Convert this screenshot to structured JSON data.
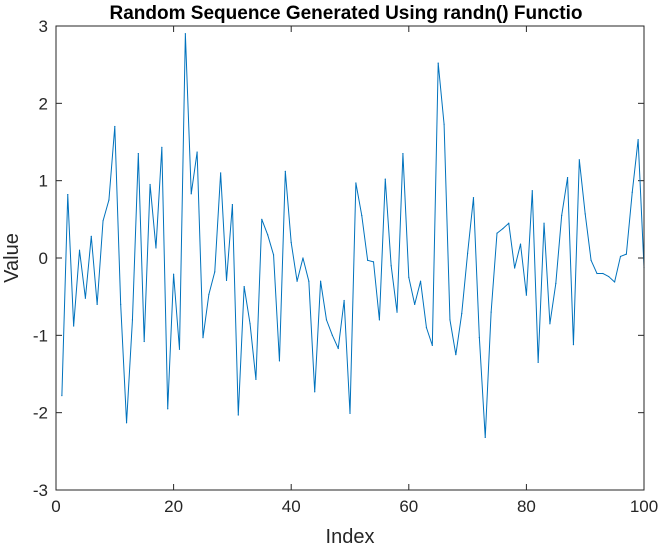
{
  "chart_data": {
    "type": "line",
    "title": "Random Sequence Generated Using randn() Functio",
    "xlabel": "Index",
    "ylabel": "Value",
    "xlim": [
      0,
      100
    ],
    "ylim": [
      -3,
      3
    ],
    "xticks": [
      0,
      20,
      40,
      60,
      80,
      100
    ],
    "yticks": [
      -3,
      -2,
      -1,
      0,
      1,
      2,
      3
    ],
    "grid": false,
    "line_color": "#0072BD",
    "series": [
      {
        "x": [
          1,
          2,
          3,
          4,
          5,
          6,
          7,
          8,
          9,
          10,
          11,
          12,
          13,
          14,
          15,
          16,
          17,
          18,
          19,
          20,
          21,
          22,
          23,
          24,
          25,
          26,
          27,
          28,
          29,
          30,
          31,
          32,
          33,
          34,
          35,
          36,
          37,
          38,
          39,
          40,
          41,
          42,
          43,
          44,
          45,
          46,
          47,
          48,
          49,
          50,
          51,
          52,
          53,
          54,
          55,
          56,
          57,
          58,
          59,
          60,
          61,
          62,
          63,
          64,
          65,
          66,
          67,
          68,
          69,
          70,
          71,
          72,
          73,
          74,
          75,
          76,
          77,
          78,
          79,
          80,
          81,
          82,
          83,
          84,
          85,
          86,
          87,
          88,
          89,
          90,
          91,
          92,
          93,
          94,
          95,
          96,
          97,
          98,
          99,
          100
        ],
        "y": [
          -1.78,
          0.82,
          -0.88,
          0.1,
          -0.52,
          0.28,
          -0.6,
          0.48,
          0.75,
          1.7,
          -0.6,
          -2.13,
          -0.8,
          1.35,
          -1.08,
          0.95,
          0.13,
          1.43,
          -1.95,
          -0.21,
          -1.18,
          2.9,
          0.83,
          1.37,
          -1.03,
          -0.47,
          -0.18,
          1.1,
          -0.29,
          0.69,
          -2.03,
          -0.37,
          -0.85,
          -1.57,
          0.5,
          0.3,
          0.04,
          -1.33,
          1.12,
          0.2,
          -0.3,
          0.0,
          -0.3,
          -1.73,
          -0.3,
          -0.8,
          -1.0,
          -1.17,
          -0.55,
          -2.01,
          0.97,
          0.55,
          -0.03,
          -0.05,
          -0.8,
          1.02,
          -0.1,
          -0.7,
          1.35,
          -0.25,
          -0.6,
          -0.3,
          -0.9,
          -1.13,
          2.52,
          1.73,
          -0.8,
          -1.25,
          -0.72,
          0.06,
          0.78,
          -1.03,
          -2.32,
          -0.7,
          0.32,
          0.38,
          0.45,
          -0.13,
          0.18,
          -0.48,
          0.87,
          -1.35,
          0.45,
          -0.85,
          -0.33,
          0.55,
          1.04,
          -1.12,
          1.27,
          0.57,
          -0.03,
          -0.2,
          -0.2,
          -0.24,
          -0.31,
          0.02,
          0.05,
          0.85,
          1.53,
          -0.12
        ]
      }
    ]
  }
}
